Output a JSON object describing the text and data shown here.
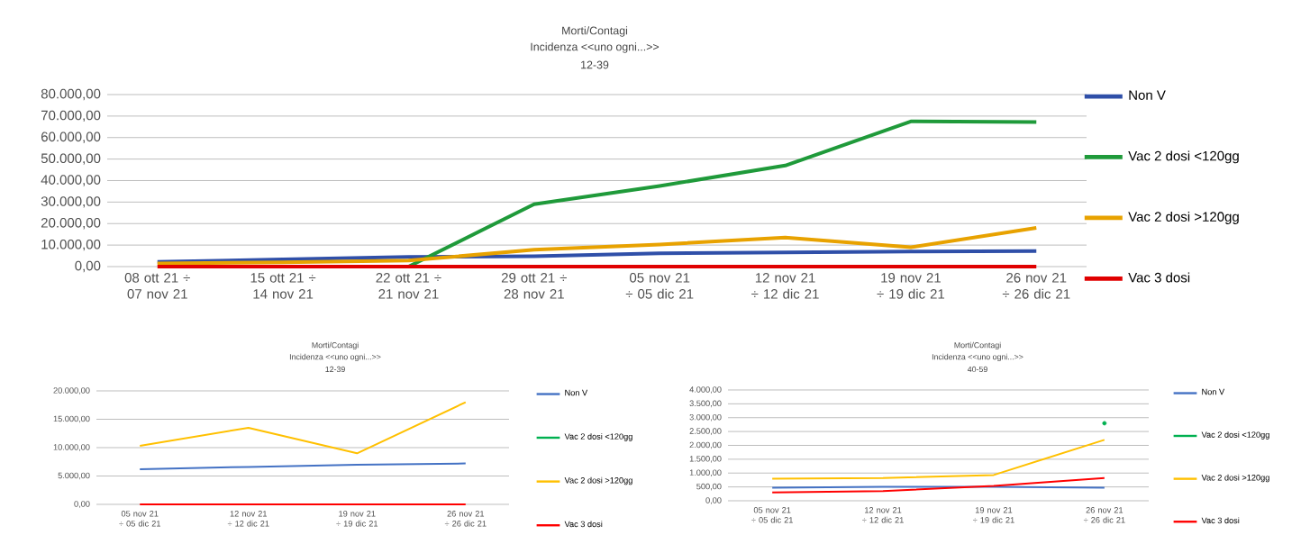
{
  "chart_data": [
    {
      "type": "line",
      "title": "Morti/Contagi",
      "subtitle": "Incidenza <<uno ogni...>>",
      "annotations": [
        "12-39"
      ],
      "categories": [
        "08 ott 21 ÷ 07 nov 21",
        "15 ott 21 ÷ 14 nov 21",
        "22 ott 21 ÷ 21 nov 21",
        "29 ott 21 ÷ 28 nov 21",
        "05 nov 21 ÷ 05 dic 21",
        "12 nov 21 ÷ 12 dic 21",
        "19 nov 21 ÷ 19 dic 21",
        "26 nov 21 ÷ 26 dic 21"
      ],
      "series": [
        {
          "name": "Non V",
          "color": "#2f4fa8",
          "values": [
            2200,
            3300,
            4500,
            4800,
            6200,
            6600,
            7000,
            7200
          ]
        },
        {
          "name": "Vac 2 dosi <120gg",
          "color": "#1f9a3a",
          "values": [
            null,
            null,
            0,
            29000,
            37500,
            47000,
            67500,
            67200
          ]
        },
        {
          "name": "Vac 2 dosi >120gg",
          "color": "#e8a200",
          "values": [
            1500,
            2000,
            2800,
            7800,
            10300,
            13500,
            9000,
            18000
          ]
        },
        {
          "name": "Vac 3 dosi",
          "color": "#e00000",
          "values": [
            0,
            0,
            0,
            0,
            0,
            0,
            0,
            0
          ]
        }
      ],
      "ylim": [
        0,
        80000
      ],
      "yticks": [
        {
          "value": 0,
          "label": "0,00"
        },
        {
          "value": 10000,
          "label": "10.000,00"
        },
        {
          "value": 20000,
          "label": "20.000,00"
        },
        {
          "value": 30000,
          "label": "30.000,00"
        },
        {
          "value": 40000,
          "label": "40.000,00"
        },
        {
          "value": 50000,
          "label": "50.000,00"
        },
        {
          "value": 60000,
          "label": "60.000,00"
        },
        {
          "value": 70000,
          "label": "70.000,00"
        },
        {
          "value": 80000,
          "label": "80.000,00"
        }
      ],
      "grid": "y",
      "legend": "right"
    },
    {
      "type": "line",
      "title": "Morti/Contagi",
      "subtitle": "Incidenza <<uno ogni...>>",
      "annotations": [
        "12-39"
      ],
      "categories": [
        "05 nov 21 ÷ 05 dic 21",
        "12 nov 21 ÷ 12 dic 21",
        "19 nov 21 ÷ 19 dic 21",
        "26 nov 21 ÷ 26 dic 21"
      ],
      "series": [
        {
          "name": "Non V",
          "color": "#4472c4",
          "values": [
            6200,
            6600,
            7000,
            7200
          ]
        },
        {
          "name": "Vac 2 dosi <120gg",
          "color": "#00b050",
          "values": [
            null,
            null,
            null,
            null
          ]
        },
        {
          "name": "Vac 2 dosi >120gg",
          "color": "#ffc000",
          "values": [
            10300,
            13500,
            9000,
            18000
          ]
        },
        {
          "name": "Vac 3 dosi",
          "color": "#ff0000",
          "values": [
            0,
            0,
            0,
            0
          ]
        }
      ],
      "ylim": [
        0,
        20000
      ],
      "yticks": [
        {
          "value": 0,
          "label": "0,00"
        },
        {
          "value": 5000,
          "label": "5.000,00"
        },
        {
          "value": 10000,
          "label": "10.000,00"
        },
        {
          "value": 15000,
          "label": "15.000,00"
        },
        {
          "value": 20000,
          "label": "20.000,00"
        }
      ],
      "grid": "y",
      "legend": "right"
    },
    {
      "type": "line",
      "title": "Morti/Contagi",
      "subtitle": "Incidenza <<uno ogni...>>",
      "annotations": [
        "40-59"
      ],
      "categories": [
        "05 nov 21 ÷ 05 dic 21",
        "12 nov 21 ÷ 12 dic 21",
        "19 nov 21 ÷ 19 dic 21",
        "26 nov 21 ÷ 26 dic 21"
      ],
      "series": [
        {
          "name": "Non V",
          "color": "#4472c4",
          "values": [
            470,
            500,
            500,
            470
          ]
        },
        {
          "name": "Vac 2 dosi <120gg",
          "color": "#00b050",
          "values": [
            null,
            null,
            null,
            2800
          ],
          "marker": "circle"
        },
        {
          "name": "Vac 2 dosi >120gg",
          "color": "#ffc000",
          "values": [
            800,
            820,
            930,
            2200
          ]
        },
        {
          "name": "Vac 3 dosi",
          "color": "#ff0000",
          "values": [
            300,
            350,
            540,
            820
          ]
        }
      ],
      "ylim": [
        0,
        4000
      ],
      "yticks": [
        {
          "value": 0,
          "label": "0,00"
        },
        {
          "value": 500,
          "label": "500,00"
        },
        {
          "value": 1000,
          "label": "1.000,00"
        },
        {
          "value": 1500,
          "label": "1.500,00"
        },
        {
          "value": 2000,
          "label": "2.000,00"
        },
        {
          "value": 2500,
          "label": "2.500,00"
        },
        {
          "value": 3000,
          "label": "3.000,00"
        },
        {
          "value": 3500,
          "label": "3.500,00"
        },
        {
          "value": 4000,
          "label": "4.000,00"
        }
      ],
      "grid": "y",
      "legend": "right"
    }
  ]
}
